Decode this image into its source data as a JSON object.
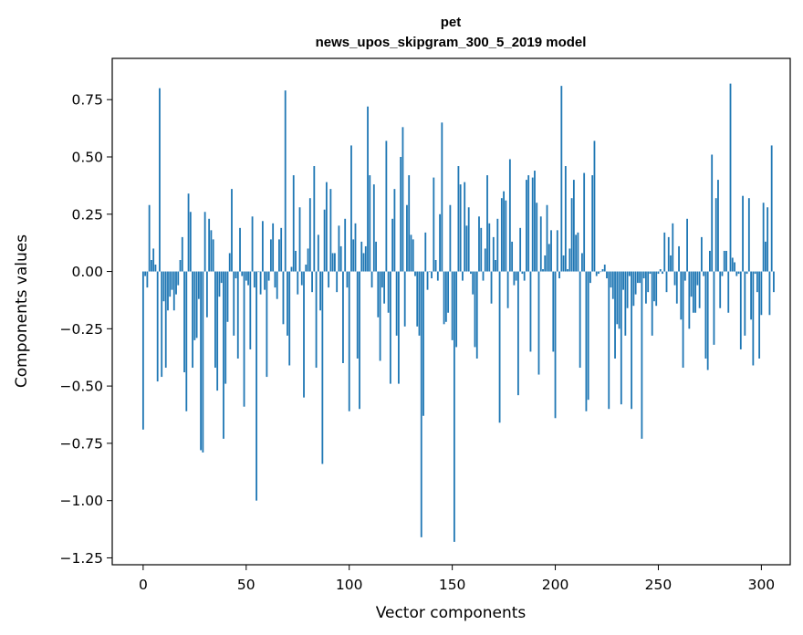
{
  "chart_data": {
    "type": "bar",
    "title": "pet",
    "subtitle": "news_upos_skipgram_300_5_2019 model",
    "xlabel": "Vector components",
    "ylabel": "Components values",
    "xlim": [
      -15,
      314
    ],
    "ylim": [
      -1.28,
      0.93
    ],
    "xticks": [
      0,
      50,
      100,
      150,
      200,
      250,
      300
    ],
    "yticks": [
      -1.25,
      -1.0,
      -0.75,
      -0.5,
      -0.25,
      0.0,
      0.25,
      0.5,
      0.75
    ],
    "ytick_labels": [
      "−1.25",
      "−1.00",
      "−0.75",
      "−0.50",
      "−0.25",
      "0.00",
      "0.25",
      "0.50",
      "0.75"
    ],
    "bar_color": "#1f77b4",
    "grid": false,
    "values": [
      -0.69,
      -0.02,
      -0.07,
      0.29,
      0.05,
      0.1,
      0.03,
      -0.48,
      0.8,
      -0.46,
      -0.13,
      -0.42,
      -0.17,
      -0.11,
      -0.08,
      -0.17,
      -0.1,
      -0.06,
      0.05,
      0.15,
      -0.44,
      -0.61,
      0.34,
      0.26,
      -0.42,
      -0.3,
      -0.29,
      -0.12,
      -0.78,
      -0.79,
      0.26,
      -0.2,
      0.23,
      0.18,
      0.14,
      -0.42,
      -0.52,
      -0.11,
      -0.05,
      -0.73,
      -0.49,
      -0.22,
      0.08,
      0.36,
      -0.28,
      -0.03,
      -0.38,
      0.19,
      -0.02,
      -0.59,
      -0.04,
      -0.06,
      -0.34,
      0.24,
      -0.07,
      -1.0,
      0.0,
      -0.1,
      0.22,
      -0.08,
      -0.46,
      -0.04,
      0.14,
      0.21,
      -0.07,
      -0.12,
      0.14,
      0.19,
      -0.23,
      0.79,
      -0.28,
      -0.41,
      0.02,
      0.42,
      0.09,
      -0.1,
      0.28,
      -0.06,
      -0.55,
      0.03,
      0.1,
      0.32,
      -0.09,
      0.46,
      -0.42,
      0.16,
      -0.17,
      -0.84,
      0.27,
      0.39,
      -0.07,
      0.36,
      0.08,
      0.08,
      -0.09,
      0.2,
      0.11,
      -0.4,
      0.23,
      -0.07,
      -0.61,
      0.55,
      0.14,
      0.21,
      -0.38,
      -0.6,
      0.13,
      0.08,
      0.11,
      0.72,
      0.42,
      -0.07,
      0.38,
      0.13,
      -0.2,
      -0.39,
      -0.07,
      -0.14,
      0.57,
      -0.18,
      -0.49,
      0.23,
      0.36,
      -0.28,
      -0.49,
      0.5,
      0.63,
      -0.24,
      0.29,
      0.42,
      0.16,
      0.14,
      -0.02,
      -0.24,
      -0.28,
      -1.16,
      -0.63,
      0.17,
      -0.08,
      0.0,
      -0.03,
      0.41,
      0.05,
      -0.04,
      0.25,
      0.65,
      -0.23,
      -0.22,
      -0.18,
      0.29,
      -0.3,
      -1.18,
      -0.33,
      0.46,
      0.38,
      -0.04,
      0.39,
      0.2,
      0.28,
      -0.01,
      -0.1,
      -0.33,
      -0.38,
      0.24,
      0.19,
      -0.04,
      0.1,
      0.42,
      0.21,
      -0.14,
      0.15,
      0.05,
      0.23,
      -0.66,
      0.32,
      0.35,
      0.31,
      -0.16,
      0.49,
      0.13,
      -0.06,
      -0.04,
      -0.54,
      0.19,
      -0.01,
      -0.04,
      0.4,
      0.42,
      -0.35,
      0.41,
      0.44,
      0.3,
      -0.45,
      0.24,
      0.01,
      0.07,
      0.29,
      0.12,
      0.18,
      -0.35,
      -0.64,
      0.18,
      -0.03,
      0.81,
      0.07,
      0.46,
      0.01,
      0.1,
      0.32,
      0.4,
      0.16,
      0.17,
      -0.42,
      0.08,
      0.43,
      -0.61,
      -0.56,
      -0.05,
      0.42,
      0.57,
      -0.02,
      -0.01,
      0.0,
      0.01,
      0.03,
      -0.03,
      -0.6,
      -0.07,
      -0.12,
      -0.38,
      -0.23,
      -0.25,
      -0.58,
      -0.08,
      -0.28,
      -0.16,
      -0.02,
      -0.6,
      -0.15,
      -0.1,
      -0.05,
      -0.05,
      -0.73,
      -0.03,
      -0.14,
      -0.09,
      -0.01,
      -0.28,
      -0.13,
      -0.15,
      -0.01,
      0.01,
      -0.01,
      0.17,
      -0.09,
      0.15,
      0.07,
      0.21,
      -0.06,
      -0.14,
      0.11,
      -0.21,
      -0.42,
      -0.04,
      0.23,
      -0.25,
      -0.11,
      -0.18,
      -0.18,
      -0.06,
      -0.16,
      0.15,
      -0.02,
      -0.38,
      -0.43,
      0.09,
      0.51,
      -0.32,
      0.32,
      0.4,
      -0.16,
      -0.02,
      0.09,
      0.09,
      -0.18,
      0.82,
      0.06,
      0.04,
      -0.02,
      -0.01,
      -0.34,
      0.33,
      -0.28,
      -0.01,
      0.32,
      -0.21,
      -0.41,
      -0.01,
      -0.09,
      -0.38,
      -0.19,
      0.3,
      0.13,
      0.28,
      -0.19,
      0.55,
      -0.09
    ]
  }
}
